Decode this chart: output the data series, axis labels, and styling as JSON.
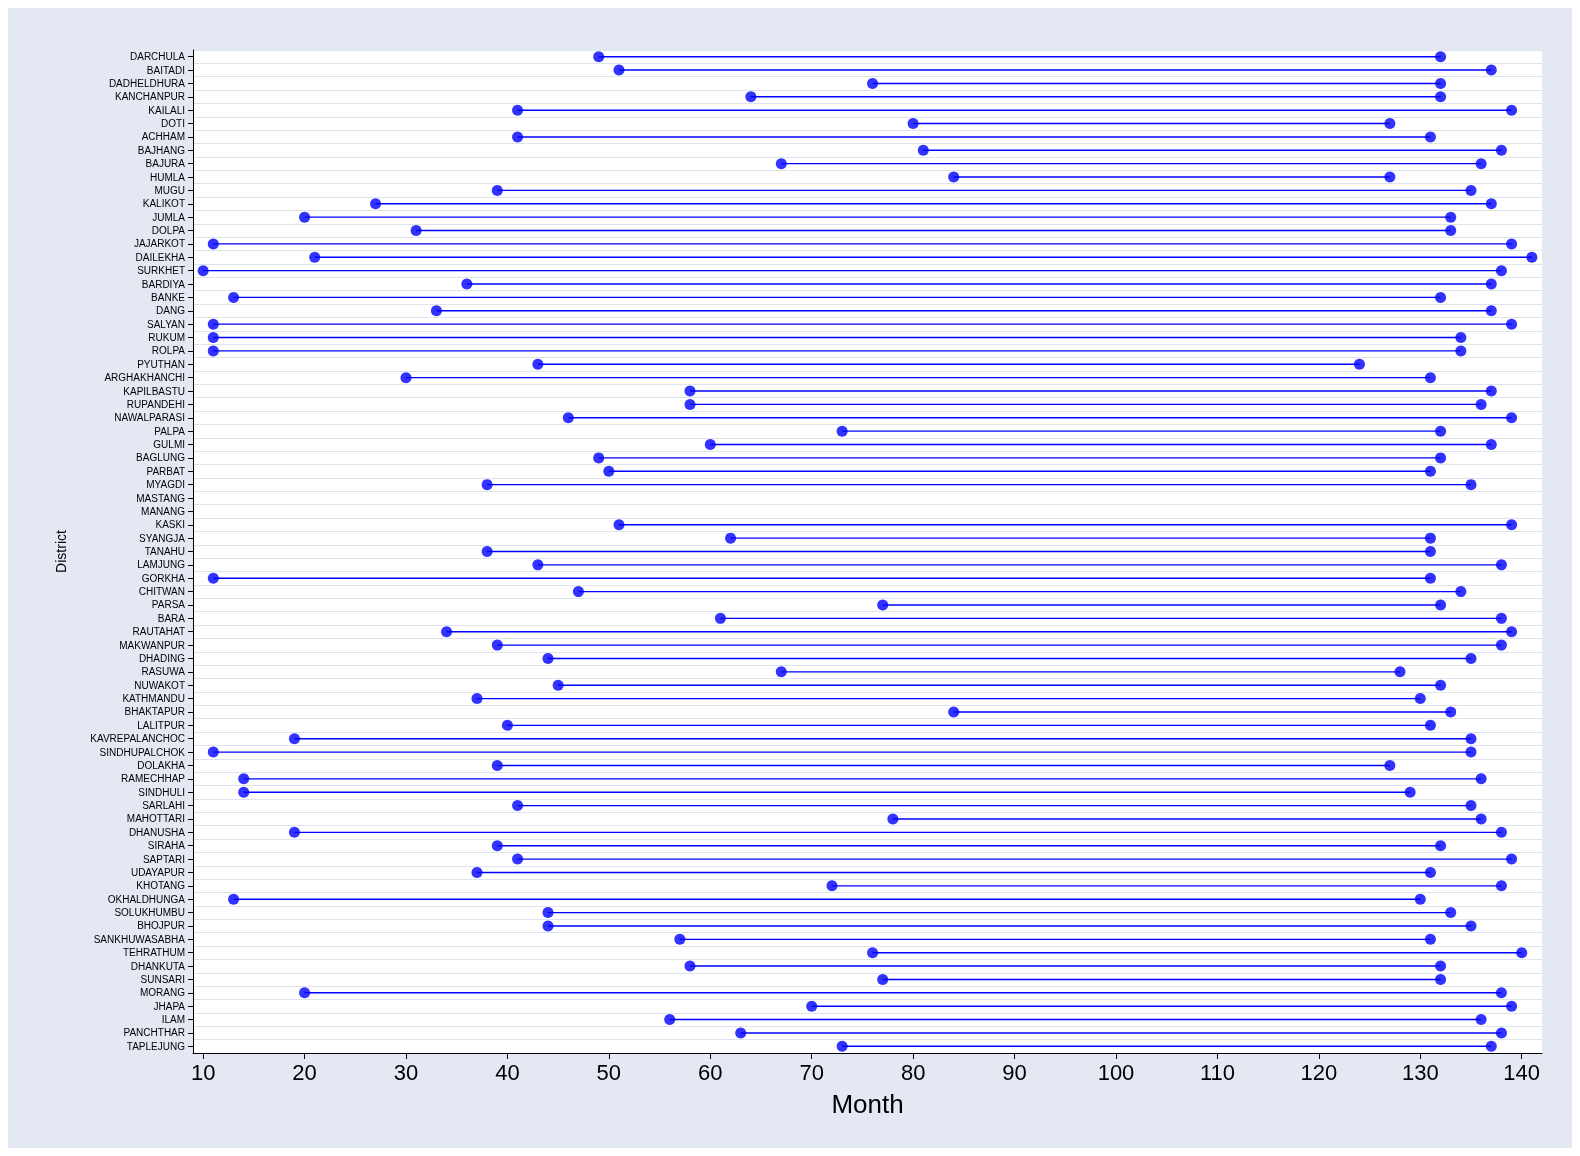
{
  "chart_data": {
    "type": "bar",
    "orientation": "horizontal",
    "xlabel": "Month",
    "ylabel": "District",
    "marker": "circle",
    "grid": "y",
    "xlim": [
      9,
      142
    ],
    "xticks": [
      10,
      20,
      30,
      40,
      50,
      60,
      70,
      80,
      90,
      100,
      110,
      120,
      130,
      140
    ],
    "categories": [
      "DARCHULA",
      "BAITADI",
      "DADHELDHURA",
      "KANCHANPUR",
      "KAILALI",
      "DOTI",
      "ACHHAM",
      "BAJHANG",
      "BAJURA",
      "HUMLA",
      "MUGU",
      "KALIKOT",
      "JUMLA",
      "DOLPA",
      "JAJARKOT",
      "DAILEKHA",
      "SURKHET",
      "BARDIYA",
      "BANKE",
      "DANG",
      "SALYAN",
      "RUKUM",
      "ROLPA",
      "PYUTHAN",
      "ARGHAKHANCHI",
      "KAPILBASTU",
      "RUPANDEHI",
      "NAWALPARASI",
      "PALPA",
      "GULMI",
      "BAGLUNG",
      "PARBAT",
      "MYAGDI",
      "MASTANG",
      "MANANG",
      "KASKI",
      "SYANGJA",
      "TANAHU",
      "LAMJUNG",
      "GORKHA",
      "CHITWAN",
      "PARSA",
      "BARA",
      "RAUTAHAT",
      "MAKWANPUR",
      "DHADING",
      "RASUWA",
      "NUWAKOT",
      "KATHMANDU",
      "BHAKTAPUR",
      "LALITPUR",
      "KAVREPALANCHOC",
      "SINDHUPALCHOK",
      "DOLAKHA",
      "RAMECHHAP",
      "SINDHULI",
      "SARLAHI",
      "MAHOTTARI",
      "DHANUSHA",
      "SIRAHA",
      "SAPTARI",
      "UDAYAPUR",
      "KHOTANG",
      "OKHALDHUNGA",
      "SOLUKHUMBU",
      "BHOJPUR",
      "SANKHUWASABHA",
      "TEHRATHUM",
      "DHANKUTA",
      "SUNSARI",
      "MORANG",
      "JHAPA",
      "ILAM",
      "PANCHTHAR",
      "TAPLEJUNG"
    ],
    "series": [
      {
        "color": "#0000ff",
        "base": [
          49,
          51,
          76,
          64,
          41,
          80,
          41,
          81,
          67,
          84,
          39,
          27,
          20,
          31,
          11,
          21,
          10,
          36,
          13,
          33,
          11,
          11,
          11,
          43,
          30,
          58,
          58,
          46,
          73,
          60,
          49,
          50,
          38,
          null,
          null,
          51,
          62,
          38,
          43,
          11,
          47,
          77,
          61,
          34,
          39,
          44,
          67,
          45,
          37,
          84,
          40,
          19,
          11,
          39,
          14,
          14,
          41,
          78,
          19,
          39,
          41,
          37,
          72,
          13,
          44,
          44,
          57,
          76,
          58,
          77,
          20,
          70,
          56,
          63,
          73
        ],
        "values": [
          83,
          86,
          56,
          68,
          98,
          47,
          90,
          57,
          69,
          43,
          96,
          110,
          113,
          102,
          128,
          120,
          128,
          101,
          119,
          104,
          128,
          123,
          123,
          81,
          101,
          79,
          78,
          93,
          59,
          77,
          83,
          81,
          97,
          null,
          null,
          88,
          69,
          93,
          95,
          120,
          87,
          55,
          77,
          105,
          99,
          91,
          61,
          87,
          93,
          49,
          91,
          116,
          124,
          88,
          122,
          115,
          94,
          58,
          119,
          93,
          98,
          94,
          66,
          117,
          89,
          91,
          74,
          64,
          74,
          55,
          118,
          69,
          80,
          75,
          64
        ]
      },
      {
        "type": "scatter",
        "color": "#0000ff",
        "values": [
          49,
          51,
          76,
          64,
          41,
          80,
          41,
          81,
          67,
          84,
          39,
          27,
          20,
          31,
          11,
          21,
          10,
          36,
          13,
          33,
          11,
          11,
          11,
          43,
          30,
          58,
          58,
          46,
          73,
          60,
          49,
          50,
          38,
          null,
          null,
          51,
          62,
          38,
          43,
          11,
          47,
          77,
          61,
          34,
          39,
          44,
          67,
          45,
          37,
          84,
          40,
          19,
          11,
          39,
          14,
          14,
          41,
          78,
          19,
          39,
          41,
          37,
          72,
          13,
          44,
          44,
          57,
          76,
          58,
          77,
          20,
          70,
          56,
          63,
          73
        ]
      },
      {
        "type": "scatter",
        "color": "#0000ff",
        "values": [
          132,
          137,
          132,
          132,
          139,
          127,
          131,
          138,
          136,
          127,
          135,
          137,
          133,
          133,
          139,
          141,
          138,
          137,
          132,
          137,
          139,
          134,
          134,
          124,
          131,
          137,
          136,
          139,
          132,
          137,
          132,
          131,
          135,
          null,
          null,
          139,
          131,
          131,
          138,
          131,
          134,
          132,
          138,
          139,
          138,
          135,
          128,
          132,
          130,
          133,
          131,
          135,
          135,
          127,
          136,
          129,
          135,
          136,
          138,
          132,
          139,
          131,
          138,
          130,
          133,
          135,
          131,
          140,
          132,
          132,
          138,
          139,
          136,
          138,
          137
        ]
      }
    ]
  }
}
